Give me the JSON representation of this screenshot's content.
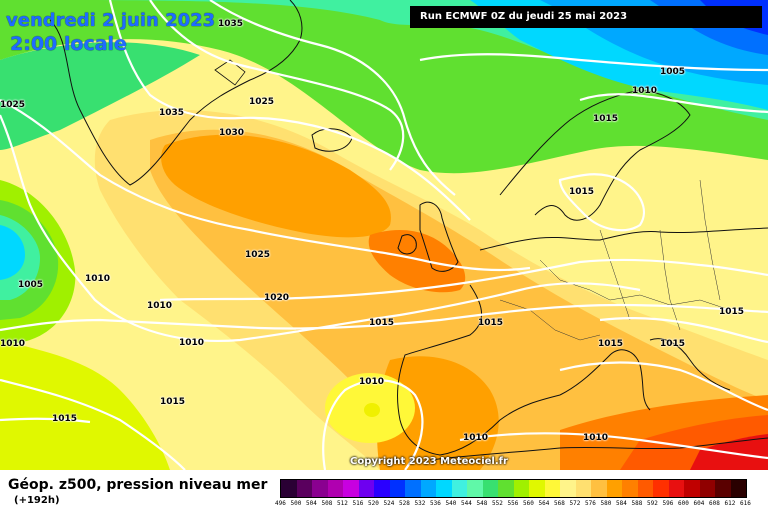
{
  "header": {
    "date": "vendredi 2 juin 2023",
    "time": "2:00 locale",
    "run": "Run ECMWF 0Z du jeudi 25 mai 2023"
  },
  "copyright": "Copyright 2023 Meteociel.fr",
  "footer": {
    "product": "Géop. z500, pression niveau mer",
    "lead": "(+192h)"
  },
  "isobar_labels": [
    "1035",
    "1025",
    "1035",
    "1025",
    "1030",
    "1005",
    "1010",
    "1015",
    "1015",
    "1005",
    "1010",
    "1010",
    "1025",
    "1020",
    "1015",
    "1015",
    "1015",
    "1015",
    "1015",
    "1010",
    "1010",
    "1015",
    "1015",
    "1010",
    "1010",
    "1010"
  ],
  "scale": {
    "values": [
      "496",
      "500",
      "504",
      "508",
      "512",
      "516",
      "520",
      "524",
      "528",
      "532",
      "536",
      "540",
      "544",
      "548",
      "552",
      "556",
      "560",
      "564",
      "568",
      "572",
      "576",
      "580",
      "584",
      "588",
      "592",
      "596",
      "600",
      "604",
      "608",
      "612",
      "616"
    ],
    "colors": [
      "#2a0034",
      "#5a005e",
      "#8a0090",
      "#b000b0",
      "#c800e0",
      "#6e00f0",
      "#2a00ff",
      "#0030ff",
      "#0070ff",
      "#00a8ff",
      "#00d8ff",
      "#40f0e0",
      "#60f8a8",
      "#38e070",
      "#60e030",
      "#a0f000",
      "#e0f800",
      "#fff838",
      "#fff48a",
      "#ffe070",
      "#ffc040",
      "#ffa000",
      "#ff8000",
      "#ff5a00",
      "#ff3000",
      "#e81010",
      "#c00000",
      "#900000",
      "#5a0000",
      "#2a0000"
    ]
  }
}
